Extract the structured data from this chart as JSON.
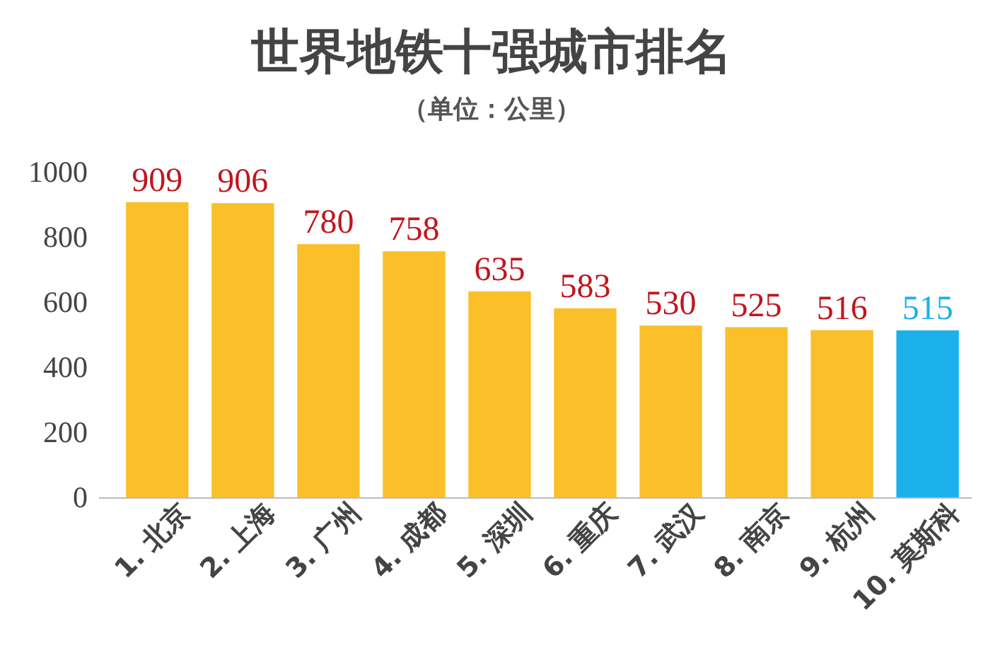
{
  "chart_data": {
    "type": "bar",
    "title": "世界地铁十强城市排名",
    "subtitle": "（单位：公里）",
    "categories": [
      "1. 北京",
      "2. 上海",
      "3. 广州",
      "4. 成都",
      "5. 深圳",
      "6. 重庆",
      "7. 武汉",
      "8. 南京",
      "9. 杭州",
      "10. 莫斯科"
    ],
    "values": [
      909,
      906,
      780,
      758,
      635,
      583,
      530,
      525,
      516,
      515
    ],
    "colors": [
      "#fbbf2a",
      "#fbbf2a",
      "#fbbf2a",
      "#fbbf2a",
      "#fbbf2a",
      "#fbbf2a",
      "#fbbf2a",
      "#fbbf2a",
      "#fbbf2a",
      "#1bb0ea"
    ],
    "ylim": [
      0,
      1000
    ],
    "yticks": [
      0,
      200,
      400,
      600,
      800,
      1000
    ],
    "grid": false,
    "data_labels": true
  }
}
